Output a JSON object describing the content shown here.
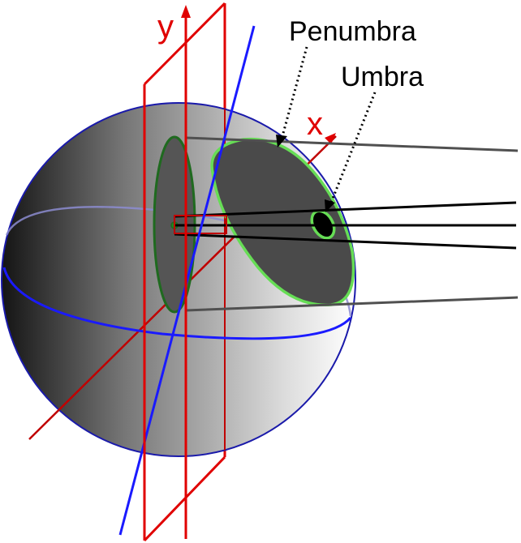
{
  "labels": {
    "y_axis": "y",
    "x_axis": "x",
    "penumbra": "Penumbra",
    "umbra": "Umbra"
  },
  "colors": {
    "axis_red": "#e00000",
    "axis_dark_red": "#c00000",
    "equator_blue": "#1a1aff",
    "outline_blue": "#1a1aaa",
    "shadow_green": "#66dd55",
    "dark_green": "#1f6a1f",
    "ray_gray": "#505050",
    "ray_black": "#000000"
  }
}
